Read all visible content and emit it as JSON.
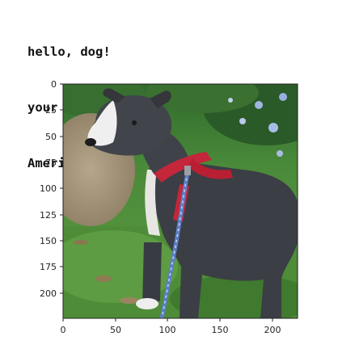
{
  "output": {
    "lines": [
      "hello, dog!",
      "your predicted breed is ...",
      "American Staffordshire terrier"
    ]
  },
  "image_plot": {
    "image_content": "photo of a gray and white dog wearing a red harness on a blue leash, standing on grass",
    "x_axis": {
      "range": [
        0,
        224
      ],
      "ticks": [
        "0",
        "50",
        "100",
        "150",
        "200"
      ]
    },
    "y_axis": {
      "range": [
        0,
        224
      ],
      "inverted": true,
      "ticks": [
        "0",
        "25",
        "50",
        "75",
        "100",
        "125",
        "150",
        "175",
        "200"
      ]
    },
    "colors": {
      "dog_body": "#3d4047",
      "harness": "#c4263a",
      "leash": "#5b7fc6",
      "grass": "#4e8a36",
      "foliage": "#2c5d2a"
    }
  }
}
